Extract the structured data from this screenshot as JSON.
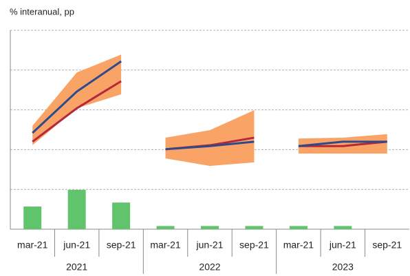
{
  "chart_data": {
    "type": "combo",
    "title": "% interanual, pp",
    "categories": [
      "mar-21",
      "jun-21",
      "sep-21",
      "mar-21",
      "jun-21",
      "sep-21",
      "mar-21",
      "jun-21",
      "sep-21"
    ],
    "groups": [
      "2021",
      "2022",
      "2023"
    ],
    "ylim": [
      0,
      5
    ],
    "yticks": [
      0,
      1,
      2,
      3,
      4,
      5
    ],
    "grid": true,
    "bars": {
      "color": "#5fc46c",
      "values": [
        0.57,
        0.99,
        0.67,
        0.08,
        0.08,
        0.08,
        0.08,
        0.08,
        null
      ]
    },
    "band": {
      "color": "#f9a466",
      "upper": [
        2.6,
        3.94,
        4.39,
        2.3,
        2.49,
        2.99,
        2.28,
        2.3,
        2.39
      ],
      "lower": [
        2.11,
        3.04,
        3.39,
        1.78,
        1.59,
        1.68,
        1.9,
        1.9,
        1.9
      ]
    },
    "lines": [
      {
        "color": "#b5283a",
        "values": [
          2.2,
          3.04,
          3.72,
          2.01,
          2.11,
          2.3,
          2.09,
          2.09,
          2.2
        ]
      },
      {
        "color": "#2c4a8c",
        "values": [
          2.42,
          3.46,
          4.22,
          2.01,
          2.09,
          2.2,
          2.09,
          2.2,
          2.2
        ]
      }
    ]
  }
}
